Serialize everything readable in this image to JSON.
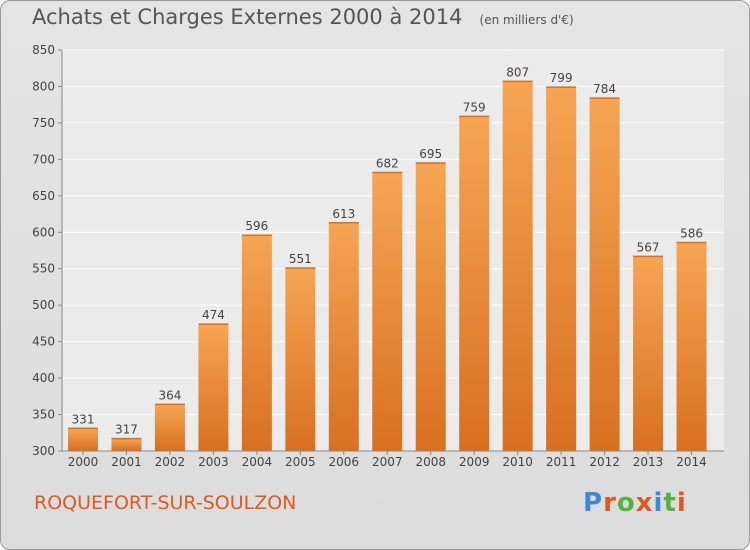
{
  "header": {
    "title": "Achats et Charges Externes 2000 à 2014",
    "unit": "(en milliers d'€)"
  },
  "footer": {
    "commune": "ROQUEFORT-SUR-SOULZON",
    "brand": "Proxiti"
  },
  "colors": {
    "bar_light": "#f6a553",
    "bar_dark": "#d87020",
    "commune_text": "#e05a1e",
    "brand_letters": [
      "#3a8ad8",
      "#e05a1e",
      "#52b33a",
      "#e05a1e",
      "#3a8ad8",
      "#52b33a",
      "#e05a1e"
    ]
  },
  "chart_data": {
    "type": "bar",
    "title": "Achats et Charges Externes 2000 à 2014",
    "subtitle": "(en milliers d'€)",
    "categories": [
      "2000",
      "2001",
      "2002",
      "2003",
      "2004",
      "2005",
      "2006",
      "2007",
      "2008",
      "2009",
      "2010",
      "2011",
      "2012",
      "2013",
      "2014"
    ],
    "values": [
      331,
      317,
      364,
      474,
      596,
      551,
      613,
      682,
      695,
      759,
      807,
      799,
      784,
      567,
      586
    ],
    "ylim": [
      300,
      850
    ],
    "yticks": [
      300,
      350,
      400,
      450,
      500,
      550,
      600,
      650,
      700,
      750,
      800,
      850
    ],
    "grid": true,
    "data_labels": true
  }
}
